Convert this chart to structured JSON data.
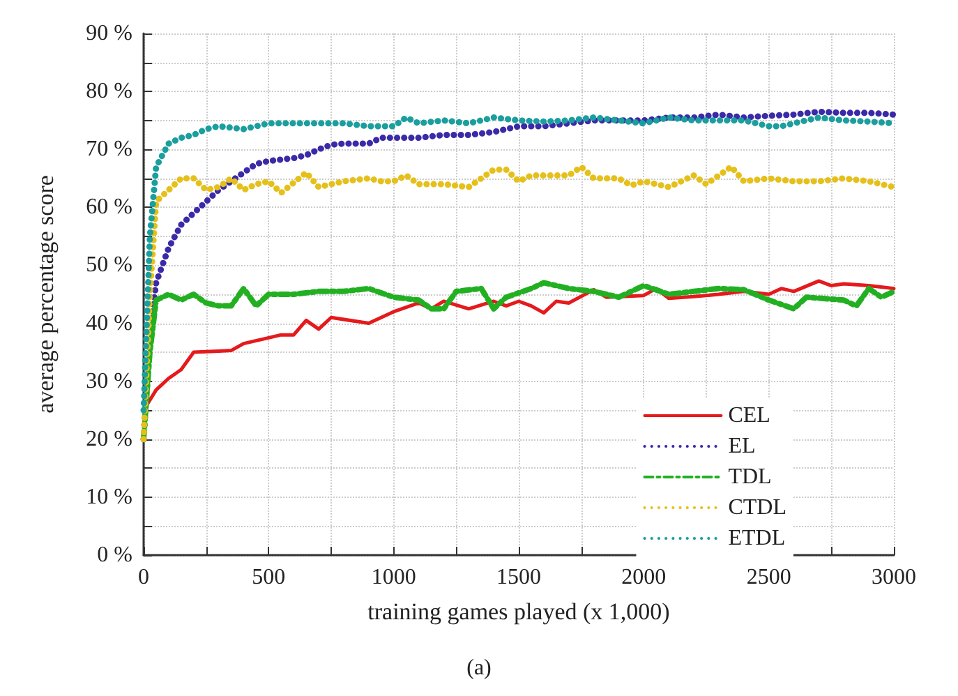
{
  "chart_data": {
    "type": "line",
    "xlabel": "training games played (x 1,000)",
    "ylabel": "average percentage score",
    "xlim": [
      0,
      3000
    ],
    "ylim": [
      0,
      90
    ],
    "xticks": [
      0,
      {
        "value": 250,
        "label": null
      },
      500,
      {
        "value": 750,
        "label": null
      },
      1000,
      {
        "value": 1250,
        "label": null
      },
      1500,
      {
        "value": 1750,
        "label": null
      },
      2000,
      {
        "value": 2250,
        "label": null
      },
      2500,
      {
        "value": 2750,
        "label": null
      },
      3000
    ],
    "yticks": [
      {
        "value": 0,
        "label": "0 %"
      },
      {
        "value": 5,
        "label": null
      },
      {
        "value": 10,
        "label": "10 %"
      },
      {
        "value": 15,
        "label": null
      },
      {
        "value": 20,
        "label": "20 %"
      },
      {
        "value": 25,
        "label": null
      },
      {
        "value": 30,
        "label": "30 %"
      },
      {
        "value": 35,
        "label": null
      },
      {
        "value": 40,
        "label": "40 %"
      },
      {
        "value": 45,
        "label": null
      },
      {
        "value": 50,
        "label": "50 %"
      },
      {
        "value": 55,
        "label": null
      },
      {
        "value": 60,
        "label": "60 %"
      },
      {
        "value": 65,
        "label": null
      },
      {
        "value": 70,
        "label": "70 %"
      },
      {
        "value": 75,
        "label": null
      },
      {
        "value": 80,
        "label": "80 %"
      },
      {
        "value": 85,
        "label": null
      },
      {
        "value": 90,
        "label": "90 %"
      }
    ],
    "grid": true,
    "legend": "bottom right",
    "marker": "none",
    "annotations": [
      "(a)"
    ],
    "series": [
      {
        "name": "CEL",
        "color": "#e41a1c",
        "line_style": "solid",
        "x": [
          0,
          50,
          100,
          150,
          200,
          300,
          350,
          400,
          500,
          550,
          600,
          650,
          700,
          750,
          900,
          1000,
          1100,
          1150,
          1200,
          1300,
          1400,
          1450,
          1500,
          1550,
          1600,
          1650,
          1700,
          1800,
          1850,
          2000,
          2050,
          2100,
          2200,
          2300,
          2400,
          2500,
          2550,
          2600,
          2700,
          2750,
          2800,
          2900,
          3000
        ],
        "values": [
          25,
          28.5,
          30.5,
          32,
          35,
          35.2,
          35.3,
          36.5,
          37.5,
          38,
          38,
          40.5,
          39,
          41,
          40,
          42,
          43.5,
          42.5,
          43.8,
          42.5,
          43.8,
          43,
          43.8,
          43,
          41.8,
          43.8,
          43.5,
          45.8,
          44.5,
          44.8,
          46,
          44.3,
          44.6,
          45,
          45.5,
          45,
          46,
          45.5,
          47.3,
          46.5,
          46.8,
          46.5,
          46
        ]
      },
      {
        "name": "EL",
        "color": "#3a2aa8",
        "line_style": "dotted",
        "x": [
          0,
          25,
          50,
          100,
          150,
          200,
          250,
          300,
          350,
          400,
          450,
          500,
          600,
          650,
          700,
          750,
          800,
          900,
          950,
          1000,
          1100,
          1200,
          1300,
          1400,
          1500,
          1600,
          1700,
          1800,
          1900,
          2000,
          2100,
          2200,
          2300,
          2400,
          2500,
          2600,
          2700,
          2800,
          2900,
          3000
        ],
        "values": [
          20,
          38,
          47,
          53,
          57,
          59,
          61,
          63,
          64.5,
          66,
          67.5,
          68,
          68.5,
          69,
          70,
          70.8,
          71,
          71,
          72,
          72,
          72,
          72.5,
          72.5,
          73,
          74,
          74,
          74.5,
          75,
          75,
          75,
          75.5,
          75.5,
          76,
          75.5,
          75.8,
          76,
          76.5,
          76.3,
          76.3,
          76
        ]
      },
      {
        "name": "TDL",
        "color": "#22b022",
        "line_style": "dashed",
        "x": [
          0,
          25,
          50,
          100,
          150,
          200,
          250,
          300,
          350,
          400,
          450,
          500,
          600,
          700,
          800,
          900,
          1000,
          1100,
          1150,
          1200,
          1250,
          1350,
          1400,
          1450,
          1550,
          1600,
          1700,
          1800,
          1900,
          2000,
          2100,
          2200,
          2300,
          2400,
          2500,
          2600,
          2650,
          2800,
          2850,
          2900,
          2950,
          3000
        ],
        "values": [
          20,
          35,
          44,
          45,
          44,
          45,
          43.5,
          43,
          43,
          46,
          43,
          45,
          45,
          45.5,
          45.5,
          46,
          44.5,
          44,
          42.5,
          42.5,
          45.5,
          46,
          42.5,
          44.5,
          46,
          47,
          46,
          45.5,
          44.5,
          46.5,
          45,
          45.5,
          46,
          45.8,
          44,
          42.5,
          44.5,
          44,
          43,
          46,
          44.5,
          45.5
        ]
      },
      {
        "name": "CTDL",
        "color": "#e6c01a",
        "line_style": "dotted",
        "x": [
          0,
          25,
          50,
          100,
          150,
          200,
          250,
          300,
          350,
          400,
          450,
          500,
          550,
          650,
          700,
          800,
          900,
          950,
          1000,
          1050,
          1100,
          1200,
          1300,
          1400,
          1450,
          1500,
          1550,
          1600,
          1700,
          1750,
          1800,
          1900,
          1950,
          2000,
          2100,
          2200,
          2250,
          2350,
          2400,
          2500,
          2600,
          2700,
          2800,
          2900,
          3000
        ],
        "values": [
          20,
          45,
          61,
          63,
          65,
          65,
          63,
          63.5,
          65,
          63,
          64,
          64.5,
          62.5,
          66,
          63.5,
          64.5,
          65,
          64.5,
          64.5,
          65.5,
          64,
          64,
          63.5,
          66.5,
          66.5,
          64.5,
          65.5,
          65.5,
          65.5,
          67,
          65,
          65,
          63.8,
          64.5,
          63.5,
          65.5,
          64,
          67,
          64.5,
          65,
          64.5,
          64.5,
          65,
          64.5,
          63.5
        ]
      },
      {
        "name": "ETDL",
        "color": "#1a9e9e",
        "line_style": "dotted",
        "x": [
          0,
          25,
          50,
          100,
          150,
          200,
          250,
          300,
          400,
          500,
          600,
          700,
          800,
          900,
          1000,
          1050,
          1100,
          1200,
          1300,
          1400,
          1500,
          1600,
          1700,
          1800,
          1900,
          2000,
          2100,
          2200,
          2400,
          2500,
          2550,
          2650,
          2700,
          2800,
          2900,
          3000
        ],
        "values": [
          25,
          55,
          67,
          71,
          72,
          72.5,
          73.5,
          74,
          73.5,
          74.5,
          74.5,
          74.5,
          74.5,
          74,
          74,
          75.5,
          74.5,
          75,
          74.5,
          75.5,
          75,
          74.8,
          75,
          75.5,
          75,
          74.5,
          75.5,
          75,
          75,
          74,
          74,
          75,
          75.5,
          75,
          74.8,
          74.5
        ]
      }
    ]
  }
}
